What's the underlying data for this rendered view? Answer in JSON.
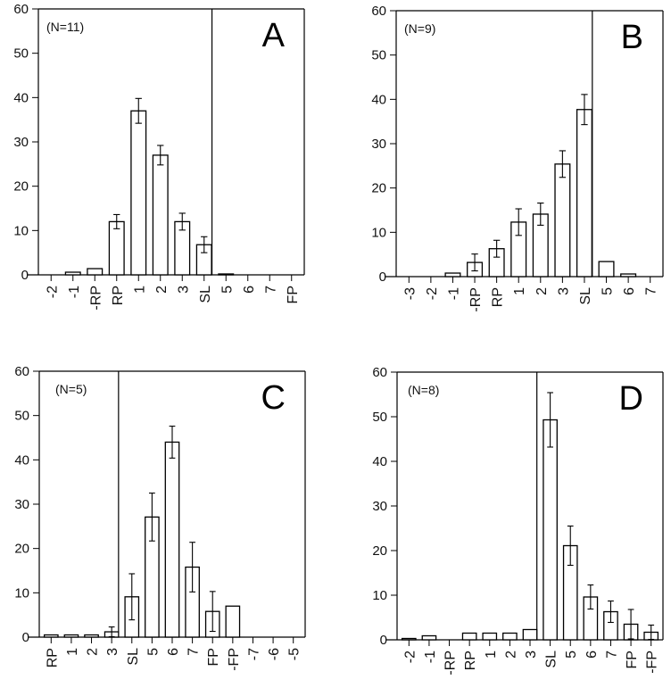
{
  "chart_data": [
    {
      "type": "bar",
      "panel": "A",
      "annotation": "(N=11)",
      "categories": [
        "-2",
        "-1",
        "-RP",
        "RP",
        "1",
        "2",
        "3",
        "SL",
        "5",
        "6",
        "7",
        "FP"
      ],
      "values": [
        0,
        0.6,
        1.4,
        12,
        37,
        27,
        12,
        6.8,
        0.2,
        0,
        0,
        0
      ],
      "errors": [
        null,
        null,
        null,
        1.6,
        2.8,
        2.2,
        1.9,
        1.8,
        null,
        null,
        null,
        null
      ],
      "divider_after": "SL",
      "ylim": [
        0,
        60
      ],
      "yticks": [
        0,
        10,
        20,
        30,
        40,
        50,
        60
      ],
      "xlabel": "",
      "ylabel": ""
    },
    {
      "type": "bar",
      "panel": "B",
      "annotation": "(N=9)",
      "categories": [
        "-3",
        "-2",
        "-1",
        "-RP",
        "RP",
        "1",
        "2",
        "3",
        "SL",
        "5",
        "6",
        "7"
      ],
      "values": [
        0,
        0,
        0.8,
        3.2,
        6.3,
        12.3,
        14.1,
        25.4,
        37.7,
        3.4,
        0.6,
        0
      ],
      "errors": [
        null,
        null,
        null,
        1.9,
        1.9,
        3.0,
        2.5,
        3.0,
        3.4,
        null,
        null,
        null
      ],
      "divider_after": "SL",
      "ylim": [
        0,
        60
      ],
      "yticks": [
        0,
        10,
        20,
        30,
        40,
        50,
        60
      ],
      "xlabel": "",
      "ylabel": ""
    },
    {
      "type": "bar",
      "panel": "C",
      "annotation": "(N=5)",
      "categories": [
        "RP",
        "1",
        "2",
        "3",
        "SL",
        "5",
        "6",
        "7",
        "FP",
        "-FP",
        "-7",
        "-6",
        "-5"
      ],
      "values": [
        0.5,
        0.5,
        0.5,
        1.2,
        9.1,
        27.1,
        44.0,
        15.8,
        5.8,
        7.0,
        0,
        0,
        0
      ],
      "errors": [
        null,
        null,
        null,
        1.1,
        5.2,
        5.4,
        3.6,
        5.6,
        4.5,
        null,
        null,
        null,
        null
      ],
      "divider_before": "SL",
      "ylim": [
        0,
        60
      ],
      "yticks": [
        0,
        10,
        20,
        30,
        40,
        50,
        60
      ],
      "xlabel": "",
      "ylabel": ""
    },
    {
      "type": "bar",
      "panel": "D",
      "annotation": "(N=8)",
      "categories": [
        "-2",
        "-1",
        "-RP",
        "RP",
        "1",
        "2",
        "3",
        "SL",
        "5",
        "6",
        "7",
        "FP",
        "-FP"
      ],
      "values": [
        0.3,
        0.9,
        0,
        1.5,
        1.5,
        1.5,
        2.3,
        49.3,
        21.1,
        9.6,
        6.3,
        3.5,
        1.7
      ],
      "errors": [
        null,
        null,
        null,
        null,
        null,
        null,
        null,
        6.1,
        4.4,
        2.7,
        2.4,
        3.3,
        1.6
      ],
      "divider_before": "SL",
      "ylim": [
        0,
        60
      ],
      "yticks": [
        0,
        10,
        20,
        30,
        40,
        50,
        60
      ],
      "xlabel": "",
      "ylabel": ""
    }
  ]
}
